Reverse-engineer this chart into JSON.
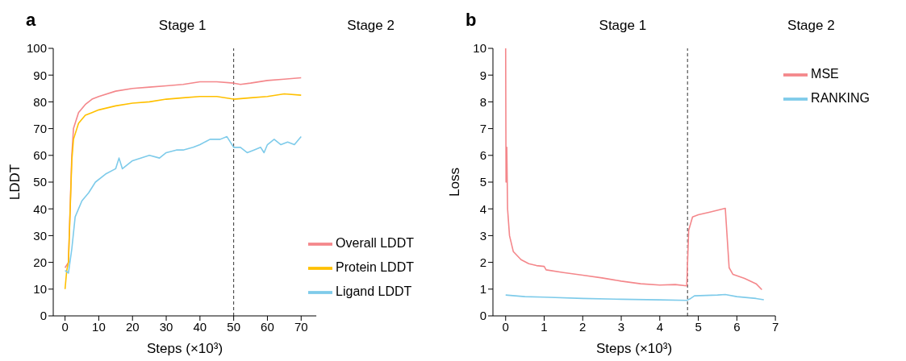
{
  "chart_data": [
    {
      "type": "line",
      "title": "a",
      "xlabel": "Steps (×10³)",
      "ylabel": "LDDT",
      "xlim": [
        -3.5,
        74.5
      ],
      "xticks": [
        0,
        10,
        20,
        30,
        40,
        50,
        60,
        70
      ],
      "ylim": [
        0,
        100
      ],
      "yticks": [
        0,
        10,
        20,
        30,
        40,
        50,
        60,
        70,
        80,
        90,
        100
      ],
      "legend": "bottom right",
      "marker": "none",
      "line_style": "solid",
      "ref_lines": [
        {
          "axis": "x",
          "value": 50,
          "label": null,
          "color": "#333333",
          "line_style": "dashed"
        }
      ],
      "annotations": [
        "Stage 1",
        "Stage 2"
      ],
      "series": [
        {
          "name": "Overall LDDT",
          "color": "#f4878b",
          "x": [
            0,
            1,
            2,
            2.5,
            4,
            6,
            8,
            10,
            15,
            20,
            25,
            30,
            35,
            40,
            45,
            50,
            52,
            55,
            60,
            65,
            70
          ],
          "values": [
            18,
            20,
            60,
            70,
            76,
            79,
            81,
            82,
            84,
            85,
            85.5,
            86,
            86.5,
            87.5,
            87.5,
            87,
            86.5,
            87,
            88,
            88.5,
            89
          ]
        },
        {
          "name": "Protein LDDT",
          "color": "#ffc000",
          "x": [
            0,
            0.5,
            1,
            2,
            2.5,
            4,
            6,
            8,
            10,
            15,
            20,
            25,
            30,
            35,
            40,
            45,
            50,
            55,
            60,
            65,
            70
          ],
          "values": [
            10,
            17,
            20,
            58,
            66,
            72,
            75,
            76,
            77,
            78.5,
            79.5,
            80,
            81,
            81.5,
            82,
            82,
            81,
            81.5,
            82,
            83,
            82.5
          ]
        },
        {
          "name": "Ligand LDDT",
          "color": "#7ecbea",
          "x": [
            0,
            1,
            2,
            3,
            5,
            7,
            9,
            12,
            15,
            16,
            17,
            20,
            25,
            28,
            30,
            33,
            35,
            38,
            40,
            43,
            46,
            48,
            50,
            52,
            54,
            56,
            58,
            59,
            60,
            62,
            64,
            66,
            68,
            70
          ],
          "values": [
            17,
            16,
            25,
            37,
            43,
            46,
            50,
            53,
            55,
            59,
            55,
            58,
            60,
            59,
            61,
            62,
            62,
            63,
            64,
            66,
            66,
            67,
            63,
            63,
            61,
            62,
            63,
            61,
            64,
            66,
            64,
            65,
            64,
            67
          ]
        }
      ]
    },
    {
      "type": "line",
      "title": "b",
      "xlabel": "Steps (×10³)",
      "ylabel": "Loss",
      "xlim": [
        -0.33,
        7
      ],
      "xticks": [
        0,
        1,
        2,
        3,
        4,
        5,
        6,
        7
      ],
      "ylim": [
        0,
        10
      ],
      "yticks": [
        0,
        1,
        2,
        3,
        4,
        5,
        6,
        7,
        8,
        9,
        10
      ],
      "legend": "top right",
      "marker": "none",
      "line_style": "solid",
      "ref_lines": [
        {
          "axis": "x",
          "value": 4.72,
          "label": null,
          "color": "#333333",
          "line_style": "dashed"
        }
      ],
      "annotations": [
        "Stage 1",
        "Stage 2"
      ],
      "series": [
        {
          "name": "MSE",
          "color": "#f4878b",
          "x": [
            0,
            0.01,
            0.03,
            0.05,
            0.1,
            0.2,
            0.4,
            0.6,
            0.8,
            1.0,
            1.05,
            1.5,
            2,
            2.5,
            3,
            3.5,
            4,
            4.4,
            4.7,
            4.75,
            4.85,
            5,
            5.3,
            5.7,
            5.8,
            5.9,
            6.2,
            6.5,
            6.65
          ],
          "values": [
            10,
            5,
            6.3,
            4,
            3,
            2.4,
            2.1,
            1.95,
            1.88,
            1.85,
            1.72,
            1.62,
            1.52,
            1.42,
            1.3,
            1.2,
            1.15,
            1.17,
            1.12,
            3.2,
            3.7,
            3.78,
            3.88,
            4.02,
            1.8,
            1.55,
            1.4,
            1.2,
            0.98
          ]
        },
        {
          "name": "RANKING",
          "color": "#7ecbea",
          "x": [
            0,
            0.5,
            1,
            2,
            3,
            4,
            4.7,
            4.8,
            4.9,
            5.5,
            5.7,
            6,
            6.5,
            6.7
          ],
          "values": [
            0.78,
            0.72,
            0.7,
            0.65,
            0.62,
            0.6,
            0.58,
            0.65,
            0.75,
            0.78,
            0.8,
            0.72,
            0.65,
            0.6
          ]
        }
      ]
    }
  ]
}
